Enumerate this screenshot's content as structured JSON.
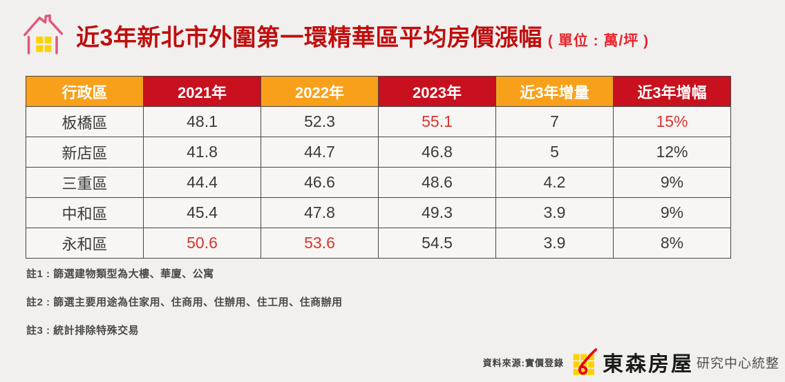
{
  "title": {
    "main": "近3年新北市外圍第一環精華區平均房價漲幅",
    "unit": "( 單位 : 萬/坪 )"
  },
  "table": {
    "headers": [
      {
        "label": "行政區",
        "bg": "orange"
      },
      {
        "label": "2021年",
        "bg": "red"
      },
      {
        "label": "2022年",
        "bg": "orange"
      },
      {
        "label": "2023年",
        "bg": "red"
      },
      {
        "label": "近3年增量",
        "bg": "orange"
      },
      {
        "label": "近3年增幅",
        "bg": "red"
      }
    ],
    "rows": [
      {
        "cells": [
          {
            "text": "板橋區"
          },
          {
            "text": "48.1"
          },
          {
            "text": "52.3"
          },
          {
            "text": "55.1",
            "red": true
          },
          {
            "text": "7"
          },
          {
            "text": "15%",
            "red": true
          }
        ]
      },
      {
        "cells": [
          {
            "text": "新店區"
          },
          {
            "text": "41.8"
          },
          {
            "text": "44.7"
          },
          {
            "text": "46.8"
          },
          {
            "text": "5"
          },
          {
            "text": "12%"
          }
        ]
      },
      {
        "cells": [
          {
            "text": "三重區"
          },
          {
            "text": "44.4"
          },
          {
            "text": "46.6"
          },
          {
            "text": "48.6"
          },
          {
            "text": "4.2"
          },
          {
            "text": "9%"
          }
        ]
      },
      {
        "cells": [
          {
            "text": "中和區"
          },
          {
            "text": "45.4"
          },
          {
            "text": "47.8"
          },
          {
            "text": "49.3"
          },
          {
            "text": "3.9"
          },
          {
            "text": "9%"
          }
        ]
      },
      {
        "cells": [
          {
            "text": "永和區"
          },
          {
            "text": "50.6",
            "red": true
          },
          {
            "text": "53.6",
            "red": true
          },
          {
            "text": "54.5"
          },
          {
            "text": "3.9"
          },
          {
            "text": "8%"
          }
        ]
      }
    ]
  },
  "chart_data": {
    "type": "table",
    "title": "近3年新北市外圍第一環精華區平均房價漲幅",
    "unit": "萬/坪",
    "columns": [
      "行政區",
      "2021年",
      "2022年",
      "2023年",
      "近3年增量",
      "近3年增幅"
    ],
    "rows": [
      [
        "板橋區",
        48.1,
        52.3,
        55.1,
        7,
        "15%"
      ],
      [
        "新店區",
        41.8,
        44.7,
        46.8,
        5,
        "12%"
      ],
      [
        "三重區",
        44.4,
        46.6,
        48.6,
        4.2,
        "9%"
      ],
      [
        "中和區",
        45.4,
        47.8,
        49.3,
        3.9,
        "9%"
      ],
      [
        "永和區",
        50.6,
        53.6,
        54.5,
        3.9,
        "8%"
      ]
    ]
  },
  "notes": [
    "註1 : 篩選建物類型為大樓、華廈、公寓",
    "註2 : 篩選主要用途為住家用、住商用、住辦用、住工用、住商辦用",
    "註3 : 統計排除特殊交易"
  ],
  "footer": {
    "source": "資料來源:實價登錄",
    "brand": "東森房屋",
    "credit": "研究中心統整"
  },
  "colors": {
    "title_red": "#C00D0D",
    "unit_red": "#E8232B",
    "header_red": "#C8101E",
    "header_orange": "#F9A01B",
    "highlight_red": "#D8352F",
    "icon_pink": "#E0567A",
    "icon_yellow": "#FFD100",
    "logo_red": "#E60012",
    "logo_yellow": "#FFD100"
  }
}
